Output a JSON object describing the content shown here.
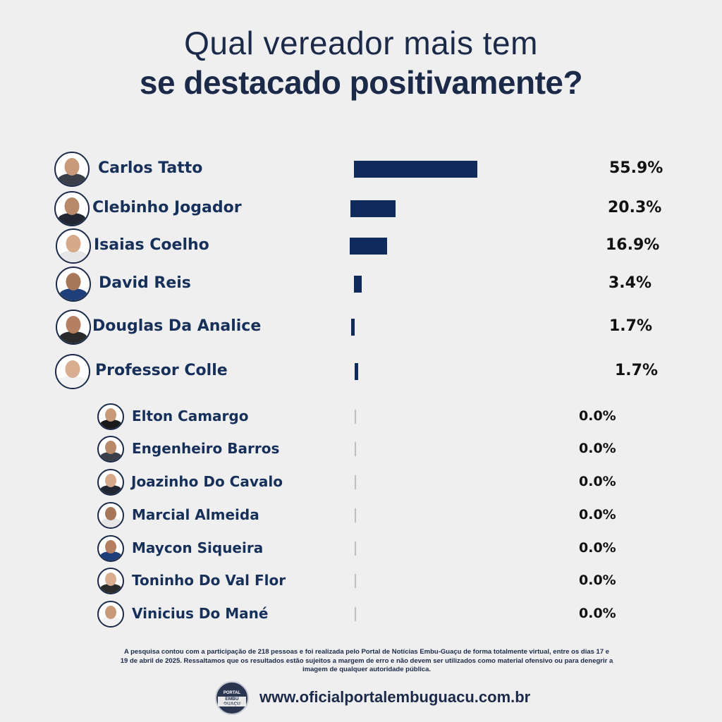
{
  "header": {
    "title_line1": "Qual vereador mais tem",
    "title_line2": "se destacado positivamente?"
  },
  "chart_data": {
    "type": "bar",
    "orientation": "horizontal",
    "categories": [
      "Carlos Tatto",
      "Clebinho Jogador",
      "Isaias Coelho",
      "David Reis",
      "Douglas Da Analice",
      "Professor Colle",
      "Elton Camargo",
      "Engenheiro Barros",
      "Joazinho Do Cavalo",
      "Marcial Almeida",
      "Maycon Siqueira",
      "Toninho Do Val Flor",
      "Vinicius Do Mané"
    ],
    "values": [
      55.9,
      20.3,
      16.9,
      3.4,
      1.7,
      1.7,
      0.0,
      0.0,
      0.0,
      0.0,
      0.0,
      0.0,
      0.0
    ],
    "labels": [
      "55.9%",
      "20.3%",
      "16.9%",
      "3.4%",
      "1.7%",
      "1.7%",
      "0.0%",
      "0.0%",
      "0.0%",
      "0.0%",
      "0.0%",
      "0.0%",
      "0.0%"
    ],
    "unit": "%",
    "bar_color": "#0f2b5b",
    "grid": false,
    "legend": "none"
  },
  "footer": {
    "note": "A pesquisa contou com a participação de 218 pessoas e foi realizada pelo Portal de Notícias Embu-Guaçu de forma totalmente virtual, entre os dias 17 e 19 de abril de 2025. Ressaltamos que os resultados estão sujeitos a margem de erro e não devem ser utilizados como material ofensivo ou para denegrir a imagem de qualquer autoridade pública.",
    "logo_line1": "PORTAL",
    "logo_line2": "EMBU GUAÇU",
    "logo_line3": "NOTÍCIAS",
    "website": "www.oficialportalembuguacu.com.br"
  },
  "colors": {
    "background": "#efefef",
    "title": "#1c2a4a",
    "name": "#16305a",
    "bar": "#0f2b5b"
  }
}
